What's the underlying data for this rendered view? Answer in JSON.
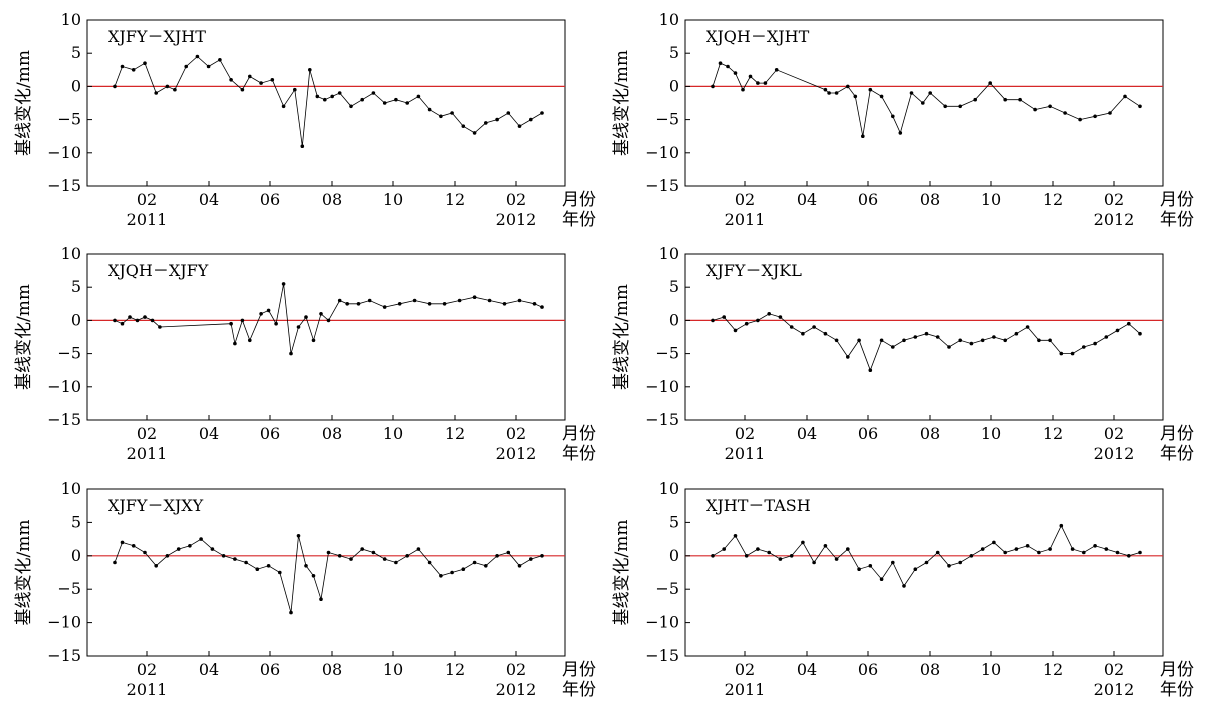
{
  "chart_data": [
    {
      "type": "line",
      "title": "XJFY－XJHT",
      "ylabel": "基线变化/mm",
      "ylim": [
        -15,
        10
      ],
      "yticks": [
        "10",
        "5",
        "0",
        "−5",
        "−10",
        "−15"
      ],
      "xticks": [
        "02",
        "04",
        "06",
        "08",
        "10",
        "12",
        "02"
      ],
      "year_labels": [
        "2011",
        "2012"
      ],
      "x_unit": "月份",
      "year_unit": "年份",
      "zero_line_color": "#d62728",
      "series": [
        {
          "color": "#000000",
          "x": [
            2011.0,
            2011.02,
            2011.05,
            2011.08,
            2011.11,
            2011.14,
            2011.16,
            2011.19,
            2011.22,
            2011.25,
            2011.28,
            2011.31,
            2011.34,
            2011.36,
            2011.39,
            2011.42,
            2011.45,
            2011.48,
            2011.5,
            2011.52,
            2011.54,
            2011.56,
            2011.58,
            2011.6,
            2011.63,
            2011.66,
            2011.69,
            2011.72,
            2011.75,
            2011.78,
            2011.81,
            2011.84,
            2011.87,
            2011.9,
            2011.93,
            2011.96,
            2011.99,
            2012.02,
            2012.05,
            2012.08,
            2012.11,
            2012.14
          ],
          "y": [
            0.0,
            3.0,
            2.5,
            3.5,
            -1.0,
            0.0,
            -0.5,
            3.0,
            4.5,
            3.0,
            4.0,
            1.0,
            -0.5,
            1.5,
            0.5,
            1.0,
            -3.0,
            -0.5,
            -9.0,
            2.5,
            -1.5,
            -2.0,
            -1.5,
            -1.0,
            -3.0,
            -2.0,
            -1.0,
            -2.5,
            -2.0,
            -2.5,
            -1.5,
            -3.5,
            -4.5,
            -4.0,
            -6.0,
            -7.0,
            -5.5,
            -5.0,
            -4.0,
            -6.0,
            -5.0,
            -4.0
          ]
        }
      ]
    },
    {
      "type": "line",
      "title": "XJQH－XJHT",
      "ylabel": "基线变化/mm",
      "ylim": [
        -15,
        10
      ],
      "yticks": [
        "10",
        "5",
        "0",
        "−5",
        "−10",
        "−15"
      ],
      "xticks": [
        "02",
        "04",
        "06",
        "08",
        "10",
        "12",
        "02"
      ],
      "year_labels": [
        "2011",
        "2012"
      ],
      "x_unit": "月份",
      "year_unit": "年份",
      "zero_line_color": "#d62728",
      "series": [
        {
          "color": "#000000",
          "x": [
            2011.0,
            2011.02,
            2011.04,
            2011.06,
            2011.08,
            2011.1,
            2011.12,
            2011.14,
            2011.17,
            2011.3,
            2011.31,
            2011.33,
            2011.36,
            2011.38,
            2011.4,
            2011.42,
            2011.45,
            2011.48,
            2011.5,
            2011.53,
            2011.56,
            2011.58,
            2011.62,
            2011.66,
            2011.7,
            2011.74,
            2011.78,
            2011.82,
            2011.86,
            2011.9,
            2011.94,
            2011.98,
            2012.02,
            2012.06,
            2012.1,
            2012.14
          ],
          "y": [
            0.0,
            3.5,
            3.0,
            2.0,
            -0.5,
            1.5,
            0.5,
            0.5,
            2.5,
            -0.5,
            -1.0,
            -1.0,
            0.0,
            -1.5,
            -7.5,
            -0.5,
            -1.5,
            -4.5,
            -7.0,
            -1.0,
            -2.5,
            -1.0,
            -3.0,
            -3.0,
            -2.0,
            0.5,
            -2.0,
            -2.0,
            -3.5,
            -3.0,
            -4.0,
            -5.0,
            -4.5,
            -4.0,
            -1.5,
            -3.0
          ]
        }
      ]
    },
    {
      "type": "line",
      "title": "XJQH－XJFY",
      "ylabel": "基线变化/mm",
      "ylim": [
        -15,
        10
      ],
      "yticks": [
        "10",
        "5",
        "0",
        "−5",
        "−10",
        "−15"
      ],
      "xticks": [
        "02",
        "04",
        "06",
        "08",
        "10",
        "12",
        "02"
      ],
      "year_labels": [
        "2011",
        "2012"
      ],
      "x_unit": "月份",
      "year_unit": "年份",
      "zero_line_color": "#d62728",
      "series": [
        {
          "color": "#000000",
          "x": [
            2011.0,
            2011.02,
            2011.04,
            2011.06,
            2011.08,
            2011.1,
            2011.12,
            2011.31,
            2011.32,
            2011.34,
            2011.36,
            2011.39,
            2011.41,
            2011.43,
            2011.45,
            2011.47,
            2011.49,
            2011.51,
            2011.53,
            2011.55,
            2011.57,
            2011.6,
            2011.62,
            2011.65,
            2011.68,
            2011.72,
            2011.76,
            2011.8,
            2011.84,
            2011.88,
            2011.92,
            2011.96,
            2012.0,
            2012.04,
            2012.08,
            2012.12,
            2012.14
          ],
          "y": [
            0.0,
            -0.5,
            0.5,
            0.0,
            0.5,
            0.0,
            -1.0,
            -0.5,
            -3.5,
            0.0,
            -3.0,
            1.0,
            1.5,
            -0.5,
            5.5,
            -5.0,
            -1.0,
            0.5,
            -3.0,
            1.0,
            0.0,
            3.0,
            2.5,
            2.5,
            3.0,
            2.0,
            2.5,
            3.0,
            2.5,
            2.5,
            3.0,
            3.5,
            3.0,
            2.5,
            3.0,
            2.5,
            2.0
          ]
        }
      ]
    },
    {
      "type": "line",
      "title": "XJFY－XJKL",
      "ylabel": "基线变化/mm",
      "ylim": [
        -15,
        10
      ],
      "yticks": [
        "10",
        "5",
        "0",
        "−5",
        "−10",
        "−15"
      ],
      "xticks": [
        "02",
        "04",
        "06",
        "08",
        "10",
        "12",
        "02"
      ],
      "year_labels": [
        "2011",
        "2012"
      ],
      "x_unit": "月份",
      "year_unit": "年份",
      "zero_line_color": "#d62728",
      "series": [
        {
          "color": "#000000",
          "x": [
            2011.0,
            2011.03,
            2011.06,
            2011.09,
            2011.12,
            2011.15,
            2011.18,
            2011.21,
            2011.24,
            2011.27,
            2011.3,
            2011.33,
            2011.36,
            2011.39,
            2011.42,
            2011.45,
            2011.48,
            2011.51,
            2011.54,
            2011.57,
            2011.6,
            2011.63,
            2011.66,
            2011.69,
            2011.72,
            2011.75,
            2011.78,
            2011.81,
            2011.84,
            2011.87,
            2011.9,
            2011.93,
            2011.96,
            2011.99,
            2012.02,
            2012.05,
            2012.08,
            2012.11,
            2012.14
          ],
          "y": [
            0.0,
            0.5,
            -1.5,
            -0.5,
            0.0,
            1.0,
            0.5,
            -1.0,
            -2.0,
            -1.0,
            -2.0,
            -3.0,
            -5.5,
            -3.0,
            -7.5,
            -3.0,
            -4.0,
            -3.0,
            -2.5,
            -2.0,
            -2.5,
            -4.0,
            -3.0,
            -3.5,
            -3.0,
            -2.5,
            -3.0,
            -2.0,
            -1.0,
            -3.0,
            -3.0,
            -5.0,
            -5.0,
            -4.0,
            -3.5,
            -2.5,
            -1.5,
            -0.5,
            -2.0
          ]
        }
      ]
    },
    {
      "type": "line",
      "title": "XJFY－XJXY",
      "ylabel": "基线变化/mm",
      "ylim": [
        -15,
        10
      ],
      "yticks": [
        "10",
        "5",
        "0",
        "−5",
        "−10",
        "−15"
      ],
      "xticks": [
        "02",
        "04",
        "06",
        "08",
        "10",
        "12",
        "02"
      ],
      "year_labels": [
        "2011",
        "2012"
      ],
      "x_unit": "月份",
      "year_unit": "年份",
      "zero_line_color": "#d62728",
      "series": [
        {
          "color": "#000000",
          "x": [
            2011.0,
            2011.02,
            2011.05,
            2011.08,
            2011.11,
            2011.14,
            2011.17,
            2011.2,
            2011.23,
            2011.26,
            2011.29,
            2011.32,
            2011.35,
            2011.38,
            2011.41,
            2011.44,
            2011.47,
            2011.49,
            2011.51,
            2011.53,
            2011.55,
            2011.57,
            2011.6,
            2011.63,
            2011.66,
            2011.69,
            2011.72,
            2011.75,
            2011.78,
            2011.81,
            2011.84,
            2011.87,
            2011.9,
            2011.93,
            2011.96,
            2011.99,
            2012.02,
            2012.05,
            2012.08,
            2012.11,
            2012.14
          ],
          "y": [
            -1.0,
            2.0,
            1.5,
            0.5,
            -1.5,
            0.0,
            1.0,
            1.5,
            2.5,
            1.0,
            0.0,
            -0.5,
            -1.0,
            -2.0,
            -1.5,
            -2.5,
            -8.5,
            3.0,
            -1.5,
            -3.0,
            -6.5,
            0.5,
            0.0,
            -0.5,
            1.0,
            0.5,
            -0.5,
            -1.0,
            0.0,
            1.0,
            -1.0,
            -3.0,
            -2.5,
            -2.0,
            -1.0,
            -1.5,
            0.0,
            0.5,
            -1.5,
            -0.5,
            0.0
          ]
        }
      ]
    },
    {
      "type": "line",
      "title": "XJHT－TASH",
      "ylabel": "基线变化/mm",
      "ylim": [
        -15,
        10
      ],
      "yticks": [
        "10",
        "5",
        "0",
        "−5",
        "−10",
        "−15"
      ],
      "xticks": [
        "02",
        "04",
        "06",
        "08",
        "10",
        "12",
        "02"
      ],
      "year_labels": [
        "2011",
        "2012"
      ],
      "x_unit": "月份",
      "year_unit": "年份",
      "zero_line_color": "#d62728",
      "series": [
        {
          "color": "#000000",
          "x": [
            2011.0,
            2011.03,
            2011.06,
            2011.09,
            2011.12,
            2011.15,
            2011.18,
            2011.21,
            2011.24,
            2011.27,
            2011.3,
            2011.33,
            2011.36,
            2011.39,
            2011.42,
            2011.45,
            2011.48,
            2011.51,
            2011.54,
            2011.57,
            2011.6,
            2011.63,
            2011.66,
            2011.69,
            2011.72,
            2011.75,
            2011.78,
            2011.81,
            2011.84,
            2011.87,
            2011.9,
            2011.93,
            2011.96,
            2011.99,
            2012.02,
            2012.05,
            2012.08,
            2012.11,
            2012.14
          ],
          "y": [
            0.0,
            1.0,
            3.0,
            0.0,
            1.0,
            0.5,
            -0.5,
            0.0,
            2.0,
            -1.0,
            1.5,
            -0.5,
            1.0,
            -2.0,
            -1.5,
            -3.5,
            -1.0,
            -4.5,
            -2.0,
            -1.0,
            0.5,
            -1.5,
            -1.0,
            0.0,
            1.0,
            2.0,
            0.5,
            1.0,
            1.5,
            0.5,
            1.0,
            4.5,
            1.0,
            0.5,
            1.5,
            1.0,
            0.5,
            0.0,
            0.5
          ]
        }
      ]
    }
  ]
}
